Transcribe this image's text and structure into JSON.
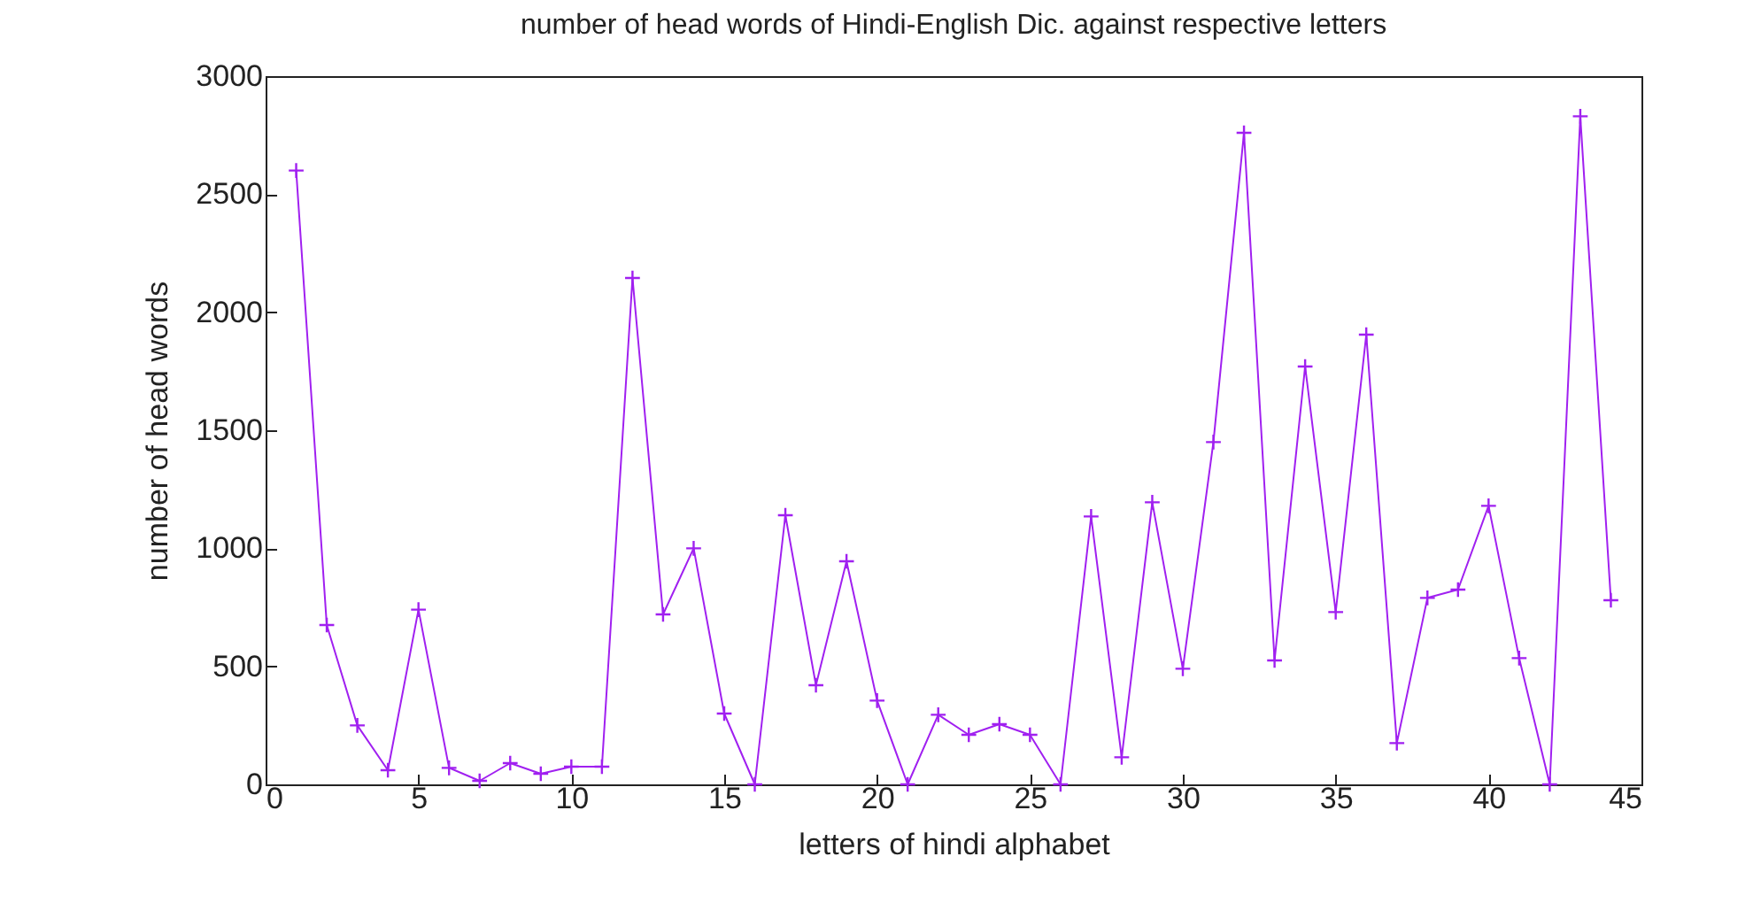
{
  "chart_data": {
    "type": "line",
    "title": "number of head words of Hindi-English Dic. against respective letters",
    "xlabel": "letters of hindi alphabet",
    "ylabel": "number of head words",
    "x": [
      1,
      2,
      3,
      4,
      5,
      6,
      7,
      8,
      9,
      10,
      11,
      12,
      13,
      14,
      15,
      16,
      17,
      18,
      19,
      20,
      21,
      22,
      23,
      24,
      25,
      26,
      27,
      28,
      29,
      30,
      31,
      32,
      33,
      34,
      35,
      36,
      37,
      38,
      39,
      40,
      41,
      42,
      43,
      44
    ],
    "series": [
      {
        "color": "#a020f0",
        "values": [
          2600,
          675,
          250,
          60,
          740,
          70,
          15,
          90,
          45,
          75,
          75,
          2145,
          720,
          1000,
          300,
          0,
          1140,
          420,
          945,
          355,
          0,
          295,
          210,
          255,
          210,
          0,
          1135,
          115,
          1195,
          490,
          1450,
          2760,
          525,
          1770,
          730,
          1905,
          175,
          790,
          825,
          1180,
          535,
          0,
          2830,
          780
        ]
      }
    ],
    "xlim": [
      0,
      45
    ],
    "xticks": [
      0,
      5,
      10,
      15,
      20,
      25,
      30,
      35,
      40,
      45
    ],
    "ylim": [
      0,
      3000
    ],
    "yticks": [
      0,
      500,
      1000,
      1500,
      2000,
      2500,
      3000
    ],
    "grid": false,
    "marker": "cross",
    "line_style": "solid"
  }
}
